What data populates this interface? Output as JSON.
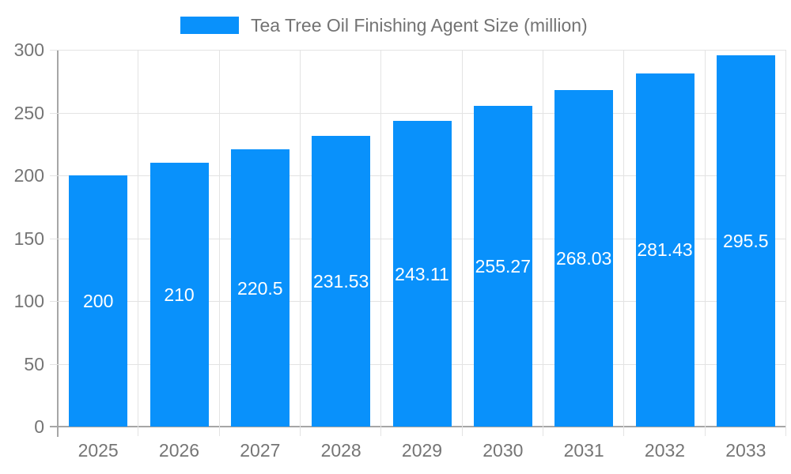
{
  "chart_data": {
    "type": "bar",
    "title": "Tea Tree Oil Finishing Agent Size (million)",
    "categories": [
      "2025",
      "2026",
      "2027",
      "2028",
      "2029",
      "2030",
      "2031",
      "2032",
      "2033"
    ],
    "series": [
      {
        "name": "Tea Tree Oil Finishing Agent Size (million)",
        "values": [
          200,
          210,
          220.5,
          231.53,
          243.11,
          255.27,
          268.03,
          281.43,
          295.5
        ],
        "value_labels": [
          "200",
          "210",
          "220.5",
          "231.53",
          "243.11",
          "255.27",
          "268.03",
          "281.43",
          "295.5"
        ]
      }
    ],
    "xlabel": "",
    "ylabel": "",
    "ylim": [
      0,
      300
    ],
    "yticks": [
      0,
      50,
      100,
      150,
      200,
      250,
      300
    ],
    "ytick_labels": [
      "0",
      "50",
      "100",
      "150",
      "200",
      "250",
      "300"
    ],
    "grid": true,
    "legend_position": "top",
    "colors": {
      "bar": "#0991FB",
      "bar_label": "#ffffff",
      "axis_label": "#757575",
      "legend_text": "#737373",
      "axis_line": "#A6A6A6",
      "gridline": "#E3E3E3",
      "background": "#ffffff"
    }
  }
}
